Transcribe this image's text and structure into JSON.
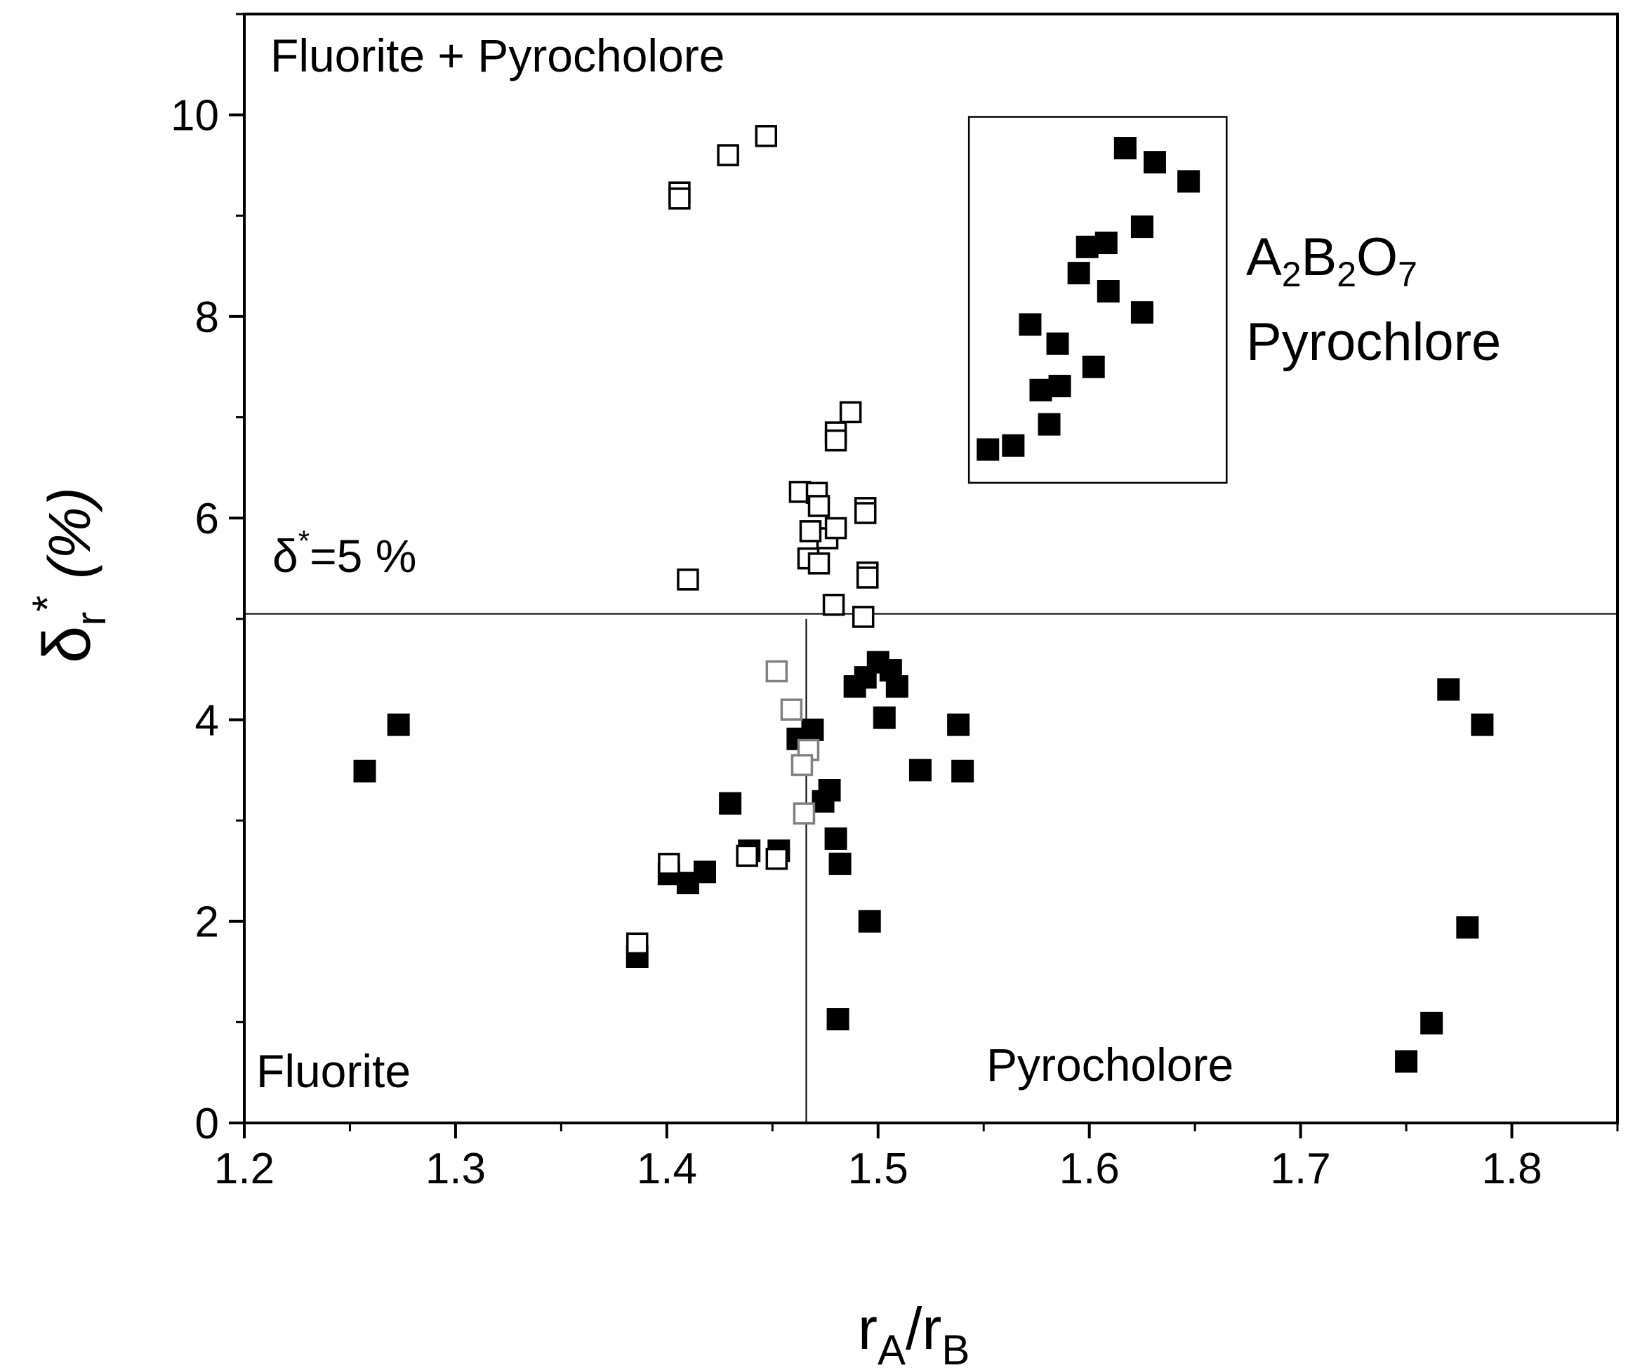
{
  "chart_data": {
    "type": "scatter",
    "xlabel": {
      "main": "r",
      "sub1": "A",
      "slash": "/r",
      "sub2": "B"
    },
    "ylabel": {
      "delta": "δ",
      "sub": "r",
      "sup": "*",
      "rest": " (%)"
    },
    "xlim": [
      1.2,
      1.85
    ],
    "ylim": [
      0,
      11
    ],
    "x_ticks": [
      1.2,
      1.3,
      1.4,
      1.5,
      1.6,
      1.7,
      1.8
    ],
    "x_tick_labels": [
      "1.2",
      "1.3",
      "1.4",
      "1.5",
      "1.6",
      "1.7",
      "1.8"
    ],
    "y_ticks": [
      0,
      2,
      4,
      6,
      8,
      10
    ],
    "y_tick_labels": [
      "0",
      "2",
      "4",
      "6",
      "8",
      "10"
    ],
    "x_minor_step": 0.05,
    "y_minor_step": 1,
    "grid": false,
    "threshold_line": {
      "y": 5.05,
      "x_start": 1.2,
      "x_end": 1.85
    },
    "vertical_line": {
      "x": 1.466,
      "y_start": 0,
      "y_end": 5.0
    },
    "annotations": {
      "top_left": "Fluorite + Pyrocholore",
      "delta_label": {
        "delta": "δ",
        "sup": "*",
        "rest": "=5 %"
      },
      "bottom_left": "Fluorite",
      "bottom_right": "Pyrocholore",
      "formula": {
        "a": "A",
        "a_sub": "2",
        "b": "B",
        "b_sub": "2",
        "o": "O",
        "o_sub": "7"
      },
      "pyrochlore": "Pyrochlore"
    },
    "inset_box": {
      "x0": 1.543,
      "x1": 1.665,
      "y0": 6.35,
      "y1": 9.98
    },
    "colors": {
      "filled": "#000000",
      "open": "#000000",
      "gray": "#808080",
      "line": "#000000"
    },
    "series": [
      {
        "marker": "filled-square",
        "points": [
          [
            1.257,
            3.49
          ],
          [
            1.273,
            3.95
          ],
          [
            1.386,
            1.65
          ],
          [
            1.401,
            2.47
          ],
          [
            1.41,
            2.38
          ],
          [
            1.418,
            2.49
          ],
          [
            1.43,
            3.17
          ],
          [
            1.439,
            2.7
          ],
          [
            1.453,
            2.7
          ],
          [
            1.462,
            3.81
          ],
          [
            1.469,
            3.9
          ],
          [
            1.474,
            3.19
          ],
          [
            1.477,
            3.3
          ],
          [
            1.48,
            2.82
          ],
          [
            1.482,
            2.57
          ],
          [
            1.481,
            1.03
          ],
          [
            1.496,
            2.0
          ],
          [
            1.489,
            4.33
          ],
          [
            1.494,
            4.42
          ],
          [
            1.5,
            4.57
          ],
          [
            1.506,
            4.49
          ],
          [
            1.509,
            4.33
          ],
          [
            1.503,
            4.02
          ],
          [
            1.52,
            3.5
          ],
          [
            1.538,
            3.95
          ],
          [
            1.54,
            3.49
          ],
          [
            1.75,
            0.61
          ],
          [
            1.762,
            0.99
          ],
          [
            1.77,
            4.3
          ],
          [
            1.779,
            1.94
          ],
          [
            1.786,
            3.95
          ],
          [
            1.552,
            6.68
          ],
          [
            1.564,
            6.72
          ],
          [
            1.572,
            7.92
          ],
          [
            1.577,
            7.27
          ],
          [
            1.581,
            6.93
          ],
          [
            1.585,
            7.73
          ],
          [
            1.586,
            7.31
          ],
          [
            1.595,
            8.43
          ],
          [
            1.599,
            8.69
          ],
          [
            1.602,
            7.5
          ],
          [
            1.608,
            8.73
          ],
          [
            1.609,
            8.25
          ],
          [
            1.617,
            9.67
          ],
          [
            1.625,
            8.89
          ],
          [
            1.625,
            8.04
          ],
          [
            1.631,
            9.53
          ],
          [
            1.647,
            9.34
          ]
        ]
      },
      {
        "marker": "open-square",
        "points": [
          [
            1.406,
            9.23
          ],
          [
            1.406,
            9.17
          ],
          [
            1.429,
            9.6
          ],
          [
            1.447,
            9.79
          ],
          [
            1.41,
            5.39
          ],
          [
            1.487,
            7.05
          ],
          [
            1.48,
            6.85
          ],
          [
            1.48,
            6.77
          ],
          [
            1.463,
            6.26
          ],
          [
            1.471,
            6.25
          ],
          [
            1.472,
            6.12
          ],
          [
            1.476,
            5.8
          ],
          [
            1.468,
            5.87
          ],
          [
            1.48,
            5.9
          ],
          [
            1.467,
            5.6
          ],
          [
            1.472,
            5.55
          ],
          [
            1.494,
            6.1
          ],
          [
            1.494,
            6.05
          ],
          [
            1.495,
            5.46
          ],
          [
            1.495,
            5.41
          ],
          [
            1.479,
            5.14
          ],
          [
            1.493,
            5.02
          ],
          [
            1.386,
            1.78
          ],
          [
            1.401,
            2.57
          ],
          [
            1.438,
            2.65
          ],
          [
            1.452,
            2.62
          ]
        ]
      },
      {
        "marker": "gray-open-square",
        "points": [
          [
            1.452,
            4.48
          ],
          [
            1.459,
            4.1
          ],
          [
            1.467,
            3.7
          ],
          [
            1.464,
            3.55
          ],
          [
            1.465,
            3.07
          ]
        ]
      }
    ]
  }
}
